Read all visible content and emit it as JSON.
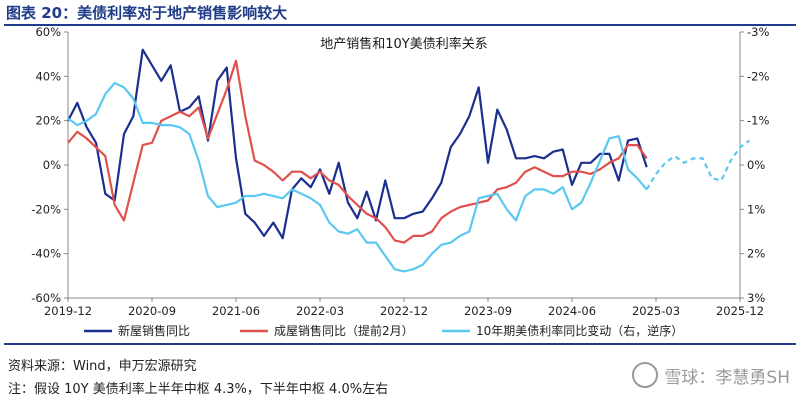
{
  "header": {
    "title": "图表 20：美债利率对于地产销售影响较大"
  },
  "footer": {
    "source": "资料来源：Wind，申万宏源研究",
    "note": "注：假设 10Y 美债利率上半年中枢 4.3%，下半年中枢 4.0%左右"
  },
  "watermark": {
    "text": "雪球：李慧勇SH"
  },
  "chart_data": {
    "type": "line",
    "title": "地产销售和10Y美债利率关系",
    "x_axis": {
      "ticks": [
        "2019-12",
        "2020-09",
        "2021-06",
        "2022-03",
        "2022-12",
        "2023-09",
        "2024-06",
        "2025-03",
        "2025-12"
      ],
      "range": [
        "2019-12",
        "2025-12"
      ]
    },
    "y_left": {
      "range": [
        -60,
        60
      ],
      "ticks": [
        "60%",
        "40%",
        "20%",
        "0%",
        "-20%",
        "-40%",
        "-60%"
      ]
    },
    "y_right": {
      "range": [
        -3,
        3
      ],
      "inverted": true,
      "ticks": [
        "-3%",
        "-2%",
        "-1%",
        "0%",
        "1%",
        "2%",
        "3%"
      ]
    },
    "grid": false,
    "series": [
      {
        "name": "新屋销售同比",
        "axis": "left",
        "color": "#1b2f8f",
        "points": [
          [
            "2019-12",
            20
          ],
          [
            "2020-01",
            28
          ],
          [
            "2020-02",
            17
          ],
          [
            "2020-03",
            10
          ],
          [
            "2020-04",
            -13
          ],
          [
            "2020-05",
            -16
          ],
          [
            "2020-06",
            14
          ],
          [
            "2020-07",
            22
          ],
          [
            "2020-08",
            52
          ],
          [
            "2020-09",
            45
          ],
          [
            "2020-10",
            38
          ],
          [
            "2020-11",
            45
          ],
          [
            "2020-12",
            24
          ],
          [
            "2021-01",
            26
          ],
          [
            "2021-02",
            31
          ],
          [
            "2021-03",
            11
          ],
          [
            "2021-04",
            38
          ],
          [
            "2021-05",
            44
          ],
          [
            "2021-06",
            3
          ],
          [
            "2021-07",
            -22
          ],
          [
            "2021-08",
            -26
          ],
          [
            "2021-09",
            -32
          ],
          [
            "2021-10",
            -26
          ],
          [
            "2021-11",
            -33
          ],
          [
            "2021-12",
            -11
          ],
          [
            "2022-01",
            -6
          ],
          [
            "2022-02",
            -10
          ],
          [
            "2022-03",
            -2
          ],
          [
            "2022-04",
            -13
          ],
          [
            "2022-05",
            1
          ],
          [
            "2022-06",
            -17
          ],
          [
            "2022-07",
            -24
          ],
          [
            "2022-08",
            -12
          ],
          [
            "2022-09",
            -25
          ],
          [
            "2022-10",
            -7
          ],
          [
            "2022-11",
            -24
          ],
          [
            "2022-12",
            -24
          ],
          [
            "2023-01",
            -22
          ],
          [
            "2023-02",
            -21
          ],
          [
            "2023-03",
            -15
          ],
          [
            "2023-04",
            -8
          ],
          [
            "2023-05",
            8
          ],
          [
            "2023-06",
            14
          ],
          [
            "2023-07",
            22
          ],
          [
            "2023-08",
            35
          ],
          [
            "2023-09",
            1
          ],
          [
            "2023-10",
            25
          ],
          [
            "2023-11",
            16
          ],
          [
            "2023-12",
            3
          ],
          [
            "2024-01",
            3
          ],
          [
            "2024-02",
            4
          ],
          [
            "2024-03",
            3
          ],
          [
            "2024-04",
            6
          ],
          [
            "2024-05",
            7
          ],
          [
            "2024-06",
            -9
          ],
          [
            "2024-07",
            1
          ],
          [
            "2024-08",
            1
          ],
          [
            "2024-09",
            5
          ],
          [
            "2024-10",
            5
          ],
          [
            "2024-11",
            -7
          ],
          [
            "2024-12",
            11
          ],
          [
            "2025-01",
            12
          ],
          [
            "2025-02",
            -1
          ]
        ]
      },
      {
        "name": "成屋销售同比（提前2月）",
        "axis": "left",
        "color": "#e0504c",
        "points": [
          [
            "2019-12",
            10
          ],
          [
            "2020-01",
            15
          ],
          [
            "2020-02",
            12
          ],
          [
            "2020-03",
            8
          ],
          [
            "2020-04",
            4
          ],
          [
            "2020-05",
            -18
          ],
          [
            "2020-06",
            -25
          ],
          [
            "2020-07",
            -8
          ],
          [
            "2020-08",
            9
          ],
          [
            "2020-09",
            10
          ],
          [
            "2020-10",
            20
          ],
          [
            "2020-11",
            22
          ],
          [
            "2020-12",
            24
          ],
          [
            "2021-01",
            22
          ],
          [
            "2021-02",
            26
          ],
          [
            "2021-03",
            12
          ],
          [
            "2021-04",
            23
          ],
          [
            "2021-05",
            34
          ],
          [
            "2021-06",
            47
          ],
          [
            "2021-07",
            22
          ],
          [
            "2021-08",
            2
          ],
          [
            "2021-09",
            0
          ],
          [
            "2021-10",
            -3
          ],
          [
            "2021-11",
            -7
          ],
          [
            "2021-12",
            -3
          ],
          [
            "2022-01",
            -3
          ],
          [
            "2022-02",
            -6
          ],
          [
            "2022-03",
            -3
          ],
          [
            "2022-04",
            -7
          ],
          [
            "2022-05",
            -9
          ],
          [
            "2022-06",
            -14
          ],
          [
            "2022-07",
            -18
          ],
          [
            "2022-08",
            -22
          ],
          [
            "2022-09",
            -24
          ],
          [
            "2022-10",
            -28
          ],
          [
            "2022-11",
            -34
          ],
          [
            "2022-12",
            -35
          ],
          [
            "2023-01",
            -32
          ],
          [
            "2023-02",
            -32
          ],
          [
            "2023-03",
            -30
          ],
          [
            "2023-04",
            -24
          ],
          [
            "2023-05",
            -21
          ],
          [
            "2023-06",
            -19
          ],
          [
            "2023-07",
            -18
          ],
          [
            "2023-08",
            -17
          ],
          [
            "2023-09",
            -16
          ],
          [
            "2023-10",
            -11
          ],
          [
            "2023-11",
            -10
          ],
          [
            "2023-12",
            -8
          ],
          [
            "2024-01",
            -3
          ],
          [
            "2024-02",
            -1
          ],
          [
            "2024-03",
            -3
          ],
          [
            "2024-04",
            -5
          ],
          [
            "2024-05",
            -5
          ],
          [
            "2024-06",
            -3
          ],
          [
            "2024-07",
            -3
          ],
          [
            "2024-08",
            -4
          ],
          [
            "2024-09",
            -2
          ],
          [
            "2024-10",
            1
          ],
          [
            "2024-11",
            3
          ],
          [
            "2024-12",
            9
          ],
          [
            "2025-01",
            9
          ],
          [
            "2025-02",
            3
          ]
        ]
      },
      {
        "name": "10年期美债利率同比变动（右，逆序）",
        "axis": "right",
        "color": "#5bc8ef",
        "points": [
          [
            "2019-12",
            -1.05
          ],
          [
            "2020-01",
            -0.9
          ],
          [
            "2020-02",
            -1.0
          ],
          [
            "2020-03",
            -1.15
          ],
          [
            "2020-04",
            -1.6
          ],
          [
            "2020-05",
            -1.85
          ],
          [
            "2020-06",
            -1.75
          ],
          [
            "2020-07",
            -1.5
          ],
          [
            "2020-08",
            -0.95
          ],
          [
            "2020-09",
            -0.95
          ],
          [
            "2020-10",
            -0.9
          ],
          [
            "2020-11",
            -0.9
          ],
          [
            "2020-12",
            -0.85
          ],
          [
            "2021-01",
            -0.7
          ],
          [
            "2021-02",
            -0.1
          ],
          [
            "2021-03",
            0.7
          ],
          [
            "2021-04",
            0.95
          ],
          [
            "2021-05",
            0.9
          ],
          [
            "2021-06",
            0.85
          ],
          [
            "2021-07",
            0.7
          ],
          [
            "2021-08",
            0.7
          ],
          [
            "2021-09",
            0.65
          ],
          [
            "2021-10",
            0.7
          ],
          [
            "2021-11",
            0.75
          ],
          [
            "2021-12",
            0.55
          ],
          [
            "2022-01",
            0.65
          ],
          [
            "2022-02",
            0.75
          ],
          [
            "2022-03",
            0.9
          ],
          [
            "2022-04",
            1.3
          ],
          [
            "2022-05",
            1.5
          ],
          [
            "2022-06",
            1.55
          ],
          [
            "2022-07",
            1.45
          ],
          [
            "2022-08",
            1.75
          ],
          [
            "2022-09",
            1.75
          ],
          [
            "2022-10",
            2.05
          ],
          [
            "2022-11",
            2.35
          ],
          [
            "2022-12",
            2.4
          ],
          [
            "2023-01",
            2.35
          ],
          [
            "2023-02",
            2.25
          ],
          [
            "2023-03",
            2.0
          ],
          [
            "2023-04",
            1.8
          ],
          [
            "2023-05",
            1.75
          ],
          [
            "2023-06",
            1.6
          ],
          [
            "2023-07",
            1.5
          ],
          [
            "2023-08",
            0.75
          ],
          [
            "2023-09",
            0.7
          ],
          [
            "2023-10",
            0.65
          ],
          [
            "2023-11",
            1.0
          ],
          [
            "2023-12",
            1.25
          ],
          [
            "2024-01",
            0.7
          ],
          [
            "2024-02",
            0.55
          ],
          [
            "2024-03",
            0.55
          ],
          [
            "2024-04",
            0.65
          ],
          [
            "2024-05",
            0.5
          ],
          [
            "2024-06",
            1.0
          ],
          [
            "2024-07",
            0.85
          ],
          [
            "2024-08",
            0.4
          ],
          [
            "2024-09",
            -0.1
          ],
          [
            "2024-10",
            -0.6
          ],
          [
            "2024-11",
            -0.65
          ],
          [
            "2024-12",
            0.1
          ],
          [
            "2025-01",
            0.3
          ],
          [
            "2025-02",
            0.55
          ]
        ]
      },
      {
        "name": "10年期美债利率同比变动（预测）",
        "axis": "right",
        "color": "#5bc8ef",
        "dashed": true,
        "points": [
          [
            "2025-02",
            0.55
          ],
          [
            "2025-03",
            0.2
          ],
          [
            "2025-04",
            -0.05
          ],
          [
            "2025-05",
            -0.2
          ],
          [
            "2025-06",
            -0.05
          ],
          [
            "2025-07",
            -0.15
          ],
          [
            "2025-08",
            -0.15
          ],
          [
            "2025-09",
            0.3
          ],
          [
            "2025-10",
            0.35
          ],
          [
            "2025-11",
            -0.1
          ],
          [
            "2025-12",
            -0.4
          ],
          [
            "2026-01",
            -0.55
          ]
        ]
      }
    ],
    "legend": {
      "position": "bottom",
      "items": [
        "新屋销售同比",
        "成屋销售同比（提前2月）",
        "10年期美债利率同比变动（右，逆序）"
      ]
    }
  }
}
